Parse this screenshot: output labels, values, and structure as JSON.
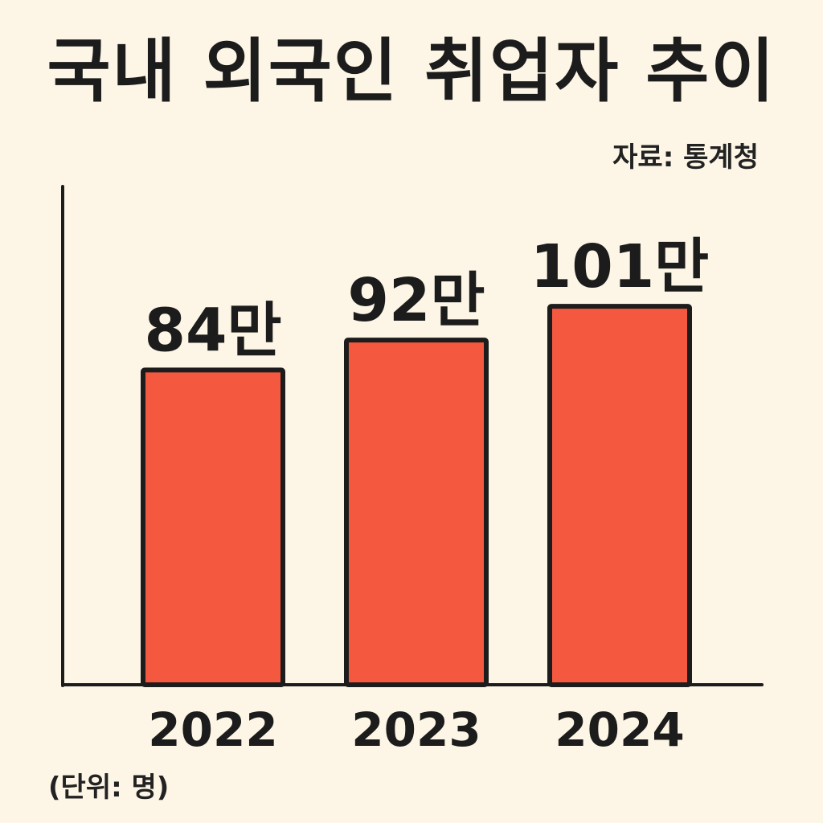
{
  "chart_data": {
    "type": "bar",
    "title": "국내 외국인 취업자 추이",
    "source": "자료: 통계청",
    "unit_note": "(단위: 명)",
    "categories": [
      "2022",
      "2023",
      "2024"
    ],
    "values": [
      840000,
      920000,
      1010000
    ],
    "value_labels": [
      "84만",
      "92만",
      "101만"
    ],
    "ylim": [
      0,
      1330000
    ],
    "grid": false,
    "legend": "none",
    "bar_color": "#f4593f",
    "outline_color": "#1c1c1c",
    "background_color": "#fdf6e6"
  }
}
